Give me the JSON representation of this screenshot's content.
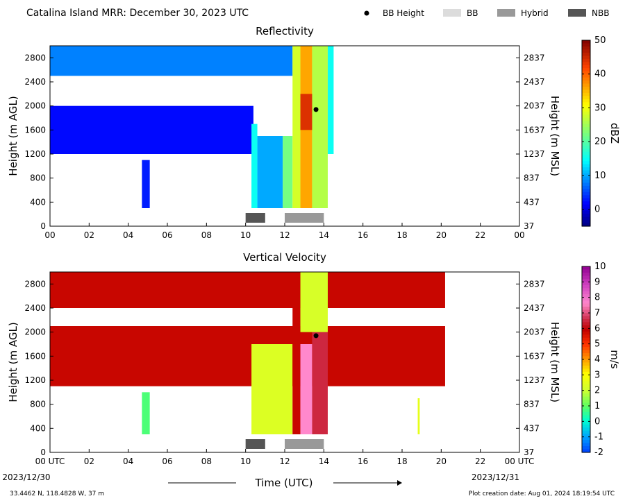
{
  "header": {
    "title": "Catalina Island MRR:  December 30, 2023 UTC",
    "legend": [
      {
        "label": "BB Height",
        "kind": "dot",
        "color": "#000000"
      },
      {
        "label": "BB",
        "kind": "box",
        "color": "#dcdcdc"
      },
      {
        "label": "Hybrid",
        "kind": "box",
        "color": "#999999"
      },
      {
        "label": "NBB",
        "kind": "box",
        "color": "#555555"
      }
    ]
  },
  "footer": {
    "location": "33.4462 N, 118.4828 W, 37 m",
    "creation": "Plot creation date: Aug 01, 2024 18:19:54 UTC",
    "xlabel": "Time (UTC)",
    "start_date": "2023/12/30",
    "end_date": "2023/12/31"
  },
  "colors": {
    "bb_dark": "#555555",
    "bb_hybrid": "#999999"
  },
  "chart_data": [
    {
      "type": "heatmap",
      "title": "Reflectivity",
      "ylabel": "Height (m AGL)",
      "y2label": "Height (m MSL)",
      "colorbar_label": "dBZ",
      "xlim": [
        0,
        24
      ],
      "ylim": [
        0,
        3000
      ],
      "x_ticks": [
        "00",
        "02",
        "04",
        "06",
        "08",
        "10",
        "12",
        "14",
        "16",
        "18",
        "20",
        "22",
        "00"
      ],
      "y_ticks": [
        0,
        400,
        800,
        1200,
        1600,
        2000,
        2400,
        2800
      ],
      "y2_ticks": [
        "37",
        "437",
        "837",
        "1237",
        "1637",
        "2037",
        "2437",
        "2837"
      ],
      "colorbar_ticks": [
        0,
        10,
        20,
        30,
        40,
        50
      ],
      "colorbar_range": [
        -5,
        50
      ],
      "bb_height": {
        "x": 13.6,
        "y": 1940
      },
      "bb_bars": [
        {
          "x0": 10.0,
          "x1": 11.0,
          "class": "NBB"
        },
        {
          "x0": 12.0,
          "x1": 14.0,
          "class": "Hybrid"
        }
      ],
      "regions": [
        {
          "x0": 0.0,
          "x1": 12.4,
          "y0": 2500,
          "y1": 3000,
          "value": 8
        },
        {
          "x0": 0.0,
          "x1": 10.4,
          "y0": 1200,
          "y1": 2000,
          "value": 2
        },
        {
          "x0": 4.7,
          "x1": 5.1,
          "y0": 300,
          "y1": 1100,
          "value": 3
        },
        {
          "x0": 10.3,
          "x1": 10.6,
          "y0": 300,
          "y1": 1700,
          "value": 15
        },
        {
          "x0": 10.6,
          "x1": 11.9,
          "y0": 300,
          "y1": 1500,
          "value": 10
        },
        {
          "x0": 11.9,
          "x1": 12.4,
          "y0": 300,
          "y1": 1500,
          "value": 22
        },
        {
          "x0": 12.4,
          "x1": 12.8,
          "y0": 300,
          "y1": 3000,
          "value": 28
        },
        {
          "x0": 12.8,
          "x1": 13.4,
          "y0": 300,
          "y1": 3000,
          "value": 36
        },
        {
          "x0": 13.4,
          "x1": 14.2,
          "y0": 300,
          "y1": 3000,
          "value": 26
        },
        {
          "x0": 14.2,
          "x1": 14.5,
          "y0": 1200,
          "y1": 3000,
          "value": 15
        },
        {
          "x0": 12.8,
          "x1": 13.4,
          "y0": 1600,
          "y1": 2200,
          "value": 44
        }
      ]
    },
    {
      "type": "heatmap",
      "title": "Vertical Velocity",
      "ylabel": "Height (m AGL)",
      "y2label": "Height (m MSL)",
      "colorbar_label": "m/s",
      "xlim": [
        0,
        24
      ],
      "ylim": [
        0,
        3000
      ],
      "x_ticks": [
        "00 UTC",
        "02",
        "04",
        "06",
        "08",
        "10",
        "12",
        "14",
        "16",
        "18",
        "20",
        "22",
        "00 UTC"
      ],
      "y_ticks": [
        0,
        400,
        800,
        1200,
        1600,
        2000,
        2400,
        2800
      ],
      "y2_ticks": [
        "37",
        "437",
        "837",
        "1237",
        "1637",
        "2037",
        "2437",
        "2837"
      ],
      "colorbar_ticks": [
        -2,
        -1,
        0,
        1,
        2,
        3,
        4,
        5,
        6,
        7,
        8,
        9,
        10
      ],
      "colorbar_range": [
        -2,
        10
      ],
      "bb_height": {
        "x": 13.6,
        "y": 1940
      },
      "bb_bars": [
        {
          "x0": 10.0,
          "x1": 11.0,
          "class": "NBB"
        },
        {
          "x0": 12.0,
          "x1": 14.0,
          "class": "Hybrid"
        }
      ],
      "regions": [
        {
          "x0": 0.0,
          "x1": 20.2,
          "y0": 2400,
          "y1": 3000,
          "value": 5.8
        },
        {
          "x0": 0.0,
          "x1": 20.2,
          "y0": 1100,
          "y1": 2100,
          "value": 5.8
        },
        {
          "x0": 4.7,
          "x1": 5.1,
          "y0": 300,
          "y1": 1000,
          "value": 0.8
        },
        {
          "x0": 10.3,
          "x1": 12.4,
          "y0": 300,
          "y1": 1800,
          "value": 2.3
        },
        {
          "x0": 12.4,
          "x1": 12.8,
          "y0": 300,
          "y1": 3000,
          "value": 5.8
        },
        {
          "x0": 12.8,
          "x1": 13.4,
          "y0": 300,
          "y1": 1800,
          "value": 7.6
        },
        {
          "x0": 13.4,
          "x1": 14.2,
          "y0": 300,
          "y1": 2000,
          "value": 6.5
        },
        {
          "x0": 12.8,
          "x1": 14.2,
          "y0": 2000,
          "y1": 3000,
          "value": 2.2
        },
        {
          "x0": 18.8,
          "x1": 18.9,
          "y0": 300,
          "y1": 900,
          "value": 2.5
        }
      ]
    }
  ]
}
